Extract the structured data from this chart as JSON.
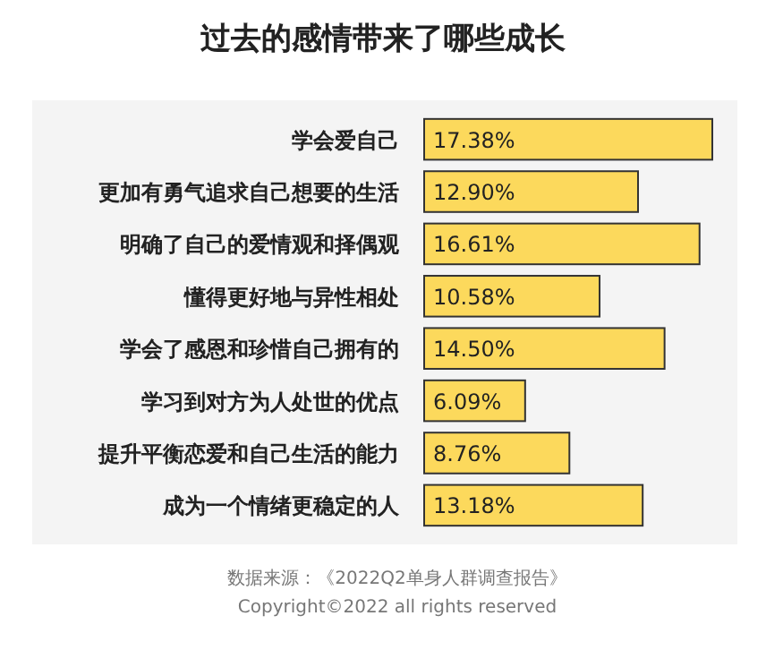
{
  "chart_data": {
    "type": "bar",
    "orientation": "horizontal",
    "title": "过去的感情带来了哪些成长",
    "categories": [
      "学会爱自己",
      "更加有勇气追求自己想要的生活",
      "明确了自己的爱情观和择偶观",
      "懂得更好地与异性相处",
      "学会了感恩和珍惜自己拥有的",
      "学习到对方为人处世的优点",
      "提升平衡恋爱和自己生活的能力",
      "成为一个情绪更稳定的人"
    ],
    "values": [
      17.38,
      12.9,
      16.61,
      10.58,
      14.5,
      6.09,
      8.76,
      13.18
    ],
    "value_labels": [
      "17.38%",
      "12.90%",
      "16.61%",
      "10.58%",
      "14.50%",
      "6.09%",
      "8.76%",
      "13.18%"
    ],
    "color": "#fcd95c",
    "annotations": [
      "数据来源：《2022Q2单身人群调查报告》",
      "Copyright©2022 all rights reserved"
    ]
  }
}
